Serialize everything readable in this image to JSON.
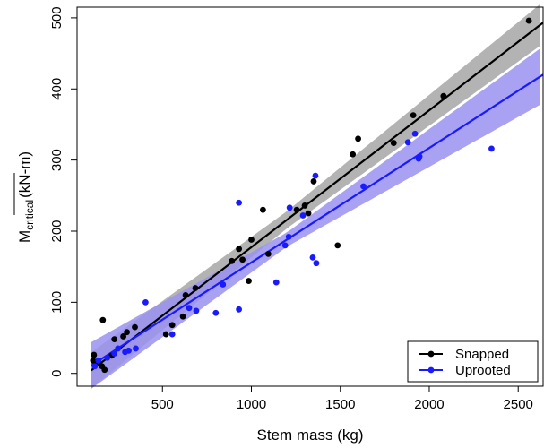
{
  "chart_data": {
    "type": "scatter",
    "xlabel": "Stem mass (kg)",
    "ylabel_main": "M",
    "ylabel_sub": "critical",
    "ylabel_unit": "(kN-m)",
    "xlim": [
      20,
      2640
    ],
    "ylim": [
      -18,
      515
    ],
    "xticks": [
      500,
      1000,
      1500,
      2000,
      2500
    ],
    "yticks": [
      0,
      100,
      200,
      300,
      400,
      500
    ],
    "grid": false,
    "legend_position": "bottom-right",
    "series": [
      {
        "name": "Snapped",
        "color": "#000000",
        "band_color": "#a6a6a6",
        "fit": {
          "slope": 0.1925,
          "intercept": -15,
          "ci_start": 8,
          "ci_end": 25
        },
        "points": [
          [
            110,
            18
          ],
          [
            115,
            26
          ],
          [
            130,
            15
          ],
          [
            160,
            10
          ],
          [
            175,
            5
          ],
          [
            165,
            75
          ],
          [
            215,
            25
          ],
          [
            230,
            48
          ],
          [
            280,
            52
          ],
          [
            300,
            58
          ],
          [
            345,
            65
          ],
          [
            520,
            55
          ],
          [
            555,
            68
          ],
          [
            615,
            80
          ],
          [
            630,
            110
          ],
          [
            685,
            120
          ],
          [
            890,
            158
          ],
          [
            930,
            175
          ],
          [
            950,
            160
          ],
          [
            985,
            130
          ],
          [
            1000,
            188
          ],
          [
            1065,
            230
          ],
          [
            1095,
            168
          ],
          [
            1255,
            230
          ],
          [
            1300,
            236
          ],
          [
            1320,
            225
          ],
          [
            1350,
            270
          ],
          [
            1485,
            180
          ],
          [
            1570,
            308
          ],
          [
            1600,
            330
          ],
          [
            1800,
            324
          ],
          [
            1910,
            363
          ],
          [
            2080,
            390
          ],
          [
            2560,
            496
          ]
        ]
      },
      {
        "name": "Uprooted",
        "color": "#1a1aff",
        "band_color": "#9a90f0",
        "fit": {
          "slope": 0.161,
          "intercept": -5,
          "ci_start": 6,
          "ci_end": 35
        },
        "points": [
          [
            120,
            10
          ],
          [
            140,
            18
          ],
          [
            190,
            22
          ],
          [
            230,
            28
          ],
          [
            250,
            35
          ],
          [
            290,
            30
          ],
          [
            310,
            32
          ],
          [
            350,
            35
          ],
          [
            405,
            100
          ],
          [
            555,
            55
          ],
          [
            650,
            92
          ],
          [
            690,
            88
          ],
          [
            800,
            85
          ],
          [
            840,
            125
          ],
          [
            930,
            240
          ],
          [
            930,
            90
          ],
          [
            1140,
            128
          ],
          [
            1190,
            180
          ],
          [
            1210,
            192
          ],
          [
            1215,
            233
          ],
          [
            1290,
            222
          ],
          [
            1345,
            163
          ],
          [
            1360,
            278
          ],
          [
            1365,
            155
          ],
          [
            1630,
            263
          ],
          [
            1880,
            325
          ],
          [
            1920,
            337
          ],
          [
            1940,
            302
          ],
          [
            1945,
            305
          ],
          [
            2350,
            316
          ]
        ]
      }
    ]
  }
}
